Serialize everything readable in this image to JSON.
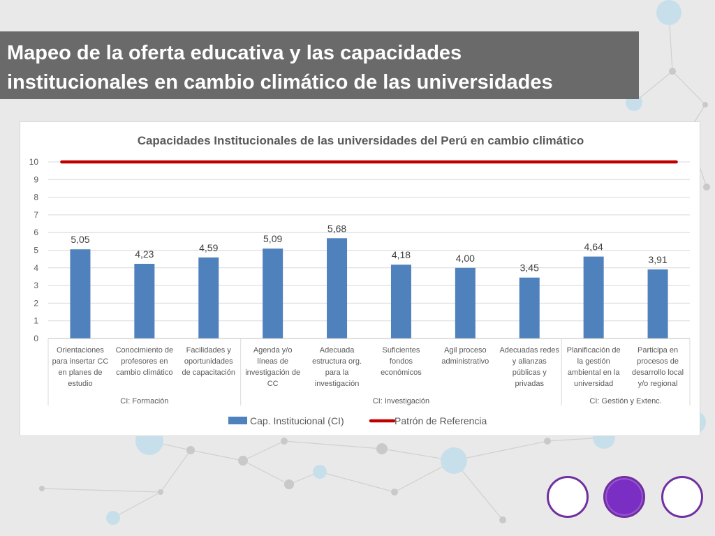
{
  "slide": {
    "title_lines": [
      "Mapeo de la oferta educativa y las capacidades",
      "institucionales en cambio climático de las universidades"
    ]
  },
  "colors": {
    "title_background": "#6a6a6a",
    "bar": "#4f81bd",
    "reference_line": "#c00000",
    "accent_purple": "#7030a0"
  },
  "nav": [
    {
      "name": "nav-circle-1-button",
      "style": "outline"
    },
    {
      "name": "nav-circle-2-button",
      "style": "filled"
    },
    {
      "name": "nav-circle-3-button",
      "style": "outline"
    }
  ],
  "chart_data": {
    "type": "bar",
    "title": "Capacidades Institucionales de las universidades del Perú en cambio climático",
    "ylim": [
      0,
      10
    ],
    "yticks": [
      0,
      1,
      2,
      3,
      4,
      5,
      6,
      7,
      8,
      9,
      10
    ],
    "grid": true,
    "legend_placement": "bottom",
    "categories": [
      [
        "Orientaciones",
        "para insertar CC",
        "en planes de",
        "estudio"
      ],
      [
        "Conocimiento de",
        "profesores en",
        "cambio climático"
      ],
      [
        "Facilidades y",
        "oportunidades",
        "de capacitación"
      ],
      [
        "Agenda y/o",
        "líneas de",
        "investigación de",
        "CC"
      ],
      [
        "Adecuada",
        "estructura org.",
        "para la",
        "investigación"
      ],
      [
        "Suficientes",
        "fondos",
        "económicos"
      ],
      [
        "Agil proceso",
        "administrativo"
      ],
      [
        "Adecuadas redes",
        "y alianzas",
        "públicas y",
        "privadas"
      ],
      [
        "Planificación de",
        "la gestión",
        "ambiental en la",
        "universidad"
      ],
      [
        "Participa en",
        "procesos de",
        "desarrollo local",
        "y/o regional"
      ]
    ],
    "groups": [
      {
        "label": "CI: Formación",
        "start": 0,
        "end": 2
      },
      {
        "label": "CI: Investigación",
        "start": 3,
        "end": 7
      },
      {
        "label": "CI: Gestión y Extenc.",
        "start": 8,
        "end": 9
      }
    ],
    "series": [
      {
        "name": "Cap. Institucional (CI)",
        "kind": "bar",
        "color": "#4f81bd",
        "values": [
          5.05,
          4.23,
          4.59,
          5.09,
          5.68,
          4.18,
          4.0,
          3.45,
          4.64,
          3.91
        ],
        "labels": [
          "5,05",
          "4,23",
          "4,59",
          "5,09",
          "5,68",
          "4,18",
          "4,00",
          "3,45",
          "4,64",
          "3,91"
        ]
      },
      {
        "name": "Patrón de Referencia",
        "kind": "line",
        "color": "#c00000",
        "values": [
          10,
          10,
          10,
          10,
          10,
          10,
          10,
          10,
          10,
          10
        ]
      }
    ]
  }
}
